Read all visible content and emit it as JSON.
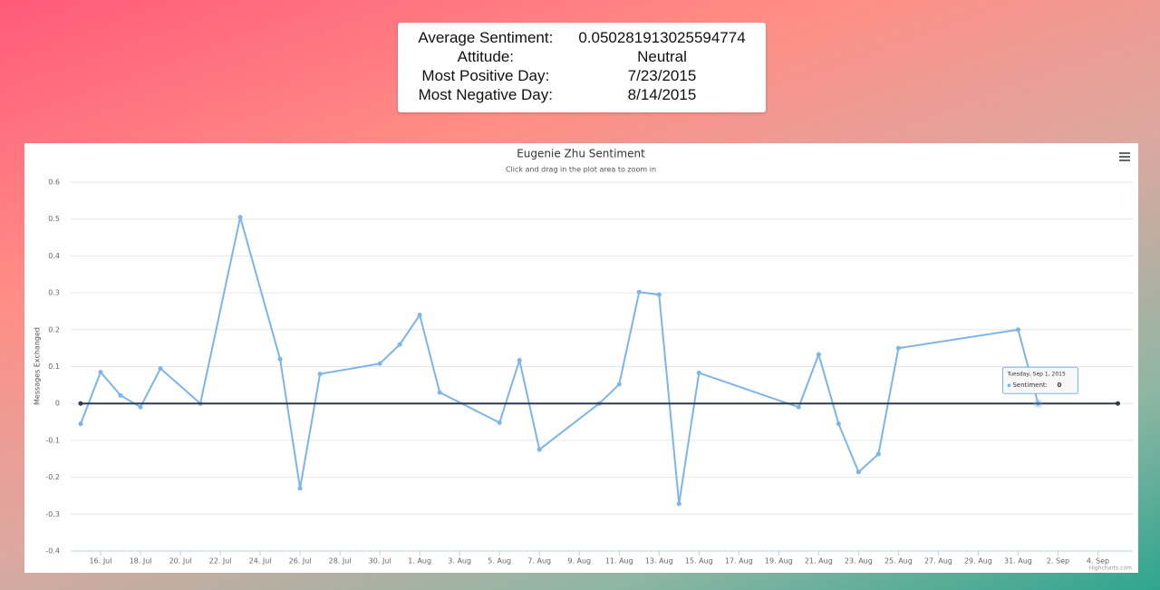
{
  "summary": {
    "rows": [
      [
        "Average Sentiment:",
        "0.050281913025594774"
      ],
      [
        "Attitude:",
        "Neutral"
      ],
      [
        "Most Positive Day:",
        "7/23/2015"
      ],
      [
        "Most Negative Day:",
        "8/14/2015"
      ]
    ]
  },
  "chart_data": {
    "type": "line",
    "title": "Eugenie Zhu Sentiment",
    "subtitle": "Click and drag in the plot area to zoom in",
    "y_label": "Messages Exchanged",
    "credits": "Highcharts.com",
    "series": [
      {
        "color": "#7cb5ec",
        "x": [
          "2015-07-15",
          "2015-07-16",
          "2015-07-17",
          "2015-07-18",
          "2015-07-19",
          "2015-07-21",
          "2015-07-23",
          "2015-07-25",
          "2015-07-26",
          "2015-07-27",
          "2015-07-30",
          "2015-07-31",
          "2015-08-01",
          "2015-08-02",
          "2015-08-05",
          "2015-08-06",
          "2015-08-07",
          "2015-08-10",
          "2015-08-11",
          "2015-08-12",
          "2015-08-13",
          "2015-08-14",
          "2015-08-15",
          "2015-08-20",
          "2015-08-21",
          "2015-08-22",
          "2015-08-23",
          "2015-08-24",
          "2015-08-25",
          "2015-08-31",
          "2015-09-01"
        ],
        "values": [
          -0.055,
          0.085,
          0.022,
          -0.01,
          0.095,
          0.0,
          0.505,
          0.12,
          -0.23,
          0.08,
          0.108,
          0.16,
          0.24,
          0.03,
          -0.052,
          0.117,
          -0.125,
          0.0,
          0.052,
          0.302,
          0.295,
          -0.272,
          0.083,
          -0.01,
          0.133,
          -0.055,
          -0.186,
          -0.137,
          0.15,
          0.2,
          0
        ]
      },
      {
        "color": "#2f3a4c",
        "x": [
          "2015-07-15",
          "2015-09-05"
        ],
        "values": [
          0,
          0
        ]
      }
    ],
    "xlim": [
      "2015-07-14T12:00:00Z",
      "2015-09-05T18:00:00Z"
    ],
    "xticks": [
      {
        "value": "2015-07-16",
        "label": "16. Jul"
      },
      {
        "value": "2015-07-18",
        "label": "18. Jul"
      },
      {
        "value": "2015-07-20",
        "label": "20. Jul"
      },
      {
        "value": "2015-07-22",
        "label": "22. Jul"
      },
      {
        "value": "2015-07-24",
        "label": "24. Jul"
      },
      {
        "value": "2015-07-26",
        "label": "26. Jul"
      },
      {
        "value": "2015-07-28",
        "label": "28. Jul"
      },
      {
        "value": "2015-07-30",
        "label": "30. Jul"
      },
      {
        "value": "2015-08-01",
        "label": "1. Aug"
      },
      {
        "value": "2015-08-03",
        "label": "3. Aug"
      },
      {
        "value": "2015-08-05",
        "label": "5. Aug"
      },
      {
        "value": "2015-08-07",
        "label": "7. Aug"
      },
      {
        "value": "2015-08-09",
        "label": "9. Aug"
      },
      {
        "value": "2015-08-11",
        "label": "11. Aug"
      },
      {
        "value": "2015-08-13",
        "label": "13. Aug"
      },
      {
        "value": "2015-08-15",
        "label": "15. Aug"
      },
      {
        "value": "2015-08-17",
        "label": "17. Aug"
      },
      {
        "value": "2015-08-19",
        "label": "19. Aug"
      },
      {
        "value": "2015-08-21",
        "label": "21. Aug"
      },
      {
        "value": "2015-08-23",
        "label": "23. Aug"
      },
      {
        "value": "2015-08-25",
        "label": "25. Aug"
      },
      {
        "value": "2015-08-27",
        "label": "27. Aug"
      },
      {
        "value": "2015-08-29",
        "label": "29. Aug"
      },
      {
        "value": "2015-08-31",
        "label": "31. Aug"
      },
      {
        "value": "2015-09-02",
        "label": "2. Sep"
      },
      {
        "value": "2015-09-04",
        "label": "4. Sep"
      }
    ],
    "ylim": [
      -0.4,
      0.6
    ],
    "yticks": [
      -0.4,
      -0.3,
      -0.2,
      -0.1,
      0,
      0.1,
      0.2,
      0.3,
      0.4,
      0.5,
      0.6
    ],
    "grid": true,
    "tooltip": {
      "header": "Tuesday, Sep 1, 2015",
      "label": "Sentiment:"
    }
  }
}
